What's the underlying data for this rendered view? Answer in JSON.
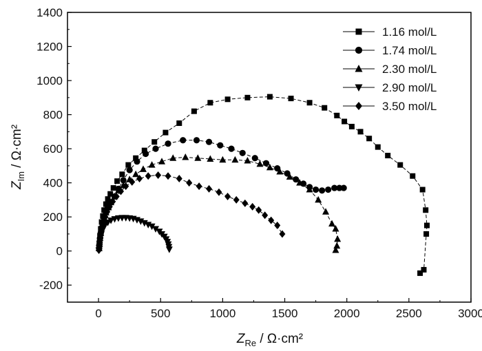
{
  "chart_data": {
    "type": "scatter",
    "title": "",
    "xlabel": {
      "main": "Z",
      "sub": "Re",
      "unit": " / Ω·cm²"
    },
    "ylabel": {
      "main": "Z",
      "sub": "Im",
      "unit": " / Ω·cm²"
    },
    "xlim": [
      -250,
      3000
    ],
    "ylim": [
      -300,
      1400
    ],
    "xticks": [
      0,
      500,
      1000,
      1500,
      2000,
      2500,
      3000
    ],
    "xtick_labels": [
      "0",
      "500",
      "1000",
      "1500",
      "2000",
      "2500",
      "3000"
    ],
    "yticks": [
      -200,
      0,
      200,
      400,
      600,
      800,
      1000,
      1200,
      1400
    ],
    "ytick_labels": [
      "-200",
      "0",
      "200",
      "400",
      "600",
      "800",
      "1000",
      "1200",
      "1400"
    ],
    "grid": false,
    "legend_position": "top-right",
    "series": [
      {
        "name": "1.16 mol/L",
        "marker": "square",
        "x": [
          5,
          8,
          12,
          18,
          25,
          35,
          45,
          60,
          75,
          95,
          120,
          150,
          190,
          240,
          300,
          370,
          450,
          540,
          650,
          770,
          900,
          1040,
          1200,
          1380,
          1550,
          1700,
          1820,
          1920,
          1980,
          2040,
          2110,
          2180,
          2250,
          2330,
          2430,
          2530,
          2610,
          2635,
          2645,
          2640,
          2620,
          2590
        ],
        "y": [
          20,
          50,
          90,
          130,
          170,
          205,
          240,
          275,
          305,
          335,
          370,
          410,
          450,
          505,
          545,
          590,
          640,
          695,
          750,
          820,
          870,
          890,
          900,
          905,
          895,
          870,
          840,
          795,
          760,
          730,
          700,
          660,
          610,
          560,
          505,
          440,
          360,
          240,
          150,
          100,
          -110,
          -130
        ]
      },
      {
        "name": "1.74 mol/L",
        "marker": "circle",
        "x": [
          5,
          8,
          12,
          18,
          25,
          35,
          45,
          60,
          80,
          100,
          130,
          160,
          200,
          250,
          310,
          380,
          460,
          560,
          680,
          790,
          890,
          980,
          1070,
          1160,
          1260,
          1350,
          1440,
          1520,
          1590,
          1650,
          1700,
          1750,
          1800,
          1850,
          1900,
          1940,
          1975
        ],
        "y": [
          15,
          40,
          75,
          105,
          135,
          165,
          195,
          225,
          255,
          285,
          320,
          365,
          415,
          475,
          525,
          570,
          600,
          630,
          650,
          650,
          640,
          620,
          600,
          575,
          545,
          515,
          485,
          455,
          420,
          395,
          375,
          360,
          355,
          360,
          370,
          370,
          370
        ]
      },
      {
        "name": "2.30 mol/L",
        "marker": "triangle-up",
        "x": [
          5,
          8,
          12,
          18,
          25,
          35,
          45,
          60,
          80,
          100,
          130,
          160,
          200,
          250,
          300,
          360,
          430,
          510,
          600,
          700,
          800,
          900,
          1000,
          1100,
          1200,
          1300,
          1380,
          1460,
          1540,
          1620,
          1700,
          1770,
          1830,
          1880,
          1910,
          1925,
          1920,
          1910
        ],
        "y": [
          15,
          40,
          75,
          105,
          135,
          165,
          195,
          225,
          255,
          285,
          320,
          355,
          385,
          420,
          450,
          480,
          505,
          525,
          545,
          550,
          545,
          540,
          535,
          535,
          530,
          510,
          490,
          465,
          435,
          400,
          360,
          300,
          230,
          160,
          130,
          70,
          30,
          5
        ]
      },
      {
        "name": "2.90 mol/L",
        "marker": "triangle-down",
        "x": [
          3,
          5,
          8,
          12,
          16,
          22,
          30,
          40,
          55,
          75,
          100,
          130,
          160,
          190,
          220,
          250,
          280,
          310,
          340,
          370,
          400,
          430,
          460,
          490,
          510,
          530,
          545,
          555,
          562,
          567,
          570
        ],
        "y": [
          5,
          20,
          40,
          60,
          80,
          100,
          120,
          140,
          155,
          168,
          180,
          188,
          193,
          195,
          195,
          193,
          190,
          183,
          175,
          165,
          155,
          145,
          130,
          115,
          100,
          85,
          70,
          55,
          40,
          25,
          10
        ]
      },
      {
        "name": "3.50 mol/L",
        "marker": "diamond",
        "x": [
          3,
          6,
          10,
          15,
          22,
          30,
          40,
          55,
          70,
          90,
          115,
          145,
          180,
          220,
          270,
          330,
          400,
          480,
          560,
          650,
          730,
          810,
          890,
          970,
          1040,
          1110,
          1180,
          1240,
          1290,
          1340,
          1390,
          1440,
          1480
        ],
        "y": [
          5,
          25,
          50,
          80,
          110,
          140,
          170,
          200,
          230,
          260,
          290,
          320,
          350,
          380,
          405,
          425,
          440,
          445,
          440,
          425,
          400,
          380,
          365,
          345,
          320,
          300,
          280,
          260,
          240,
          210,
          180,
          150,
          100
        ]
      }
    ]
  }
}
